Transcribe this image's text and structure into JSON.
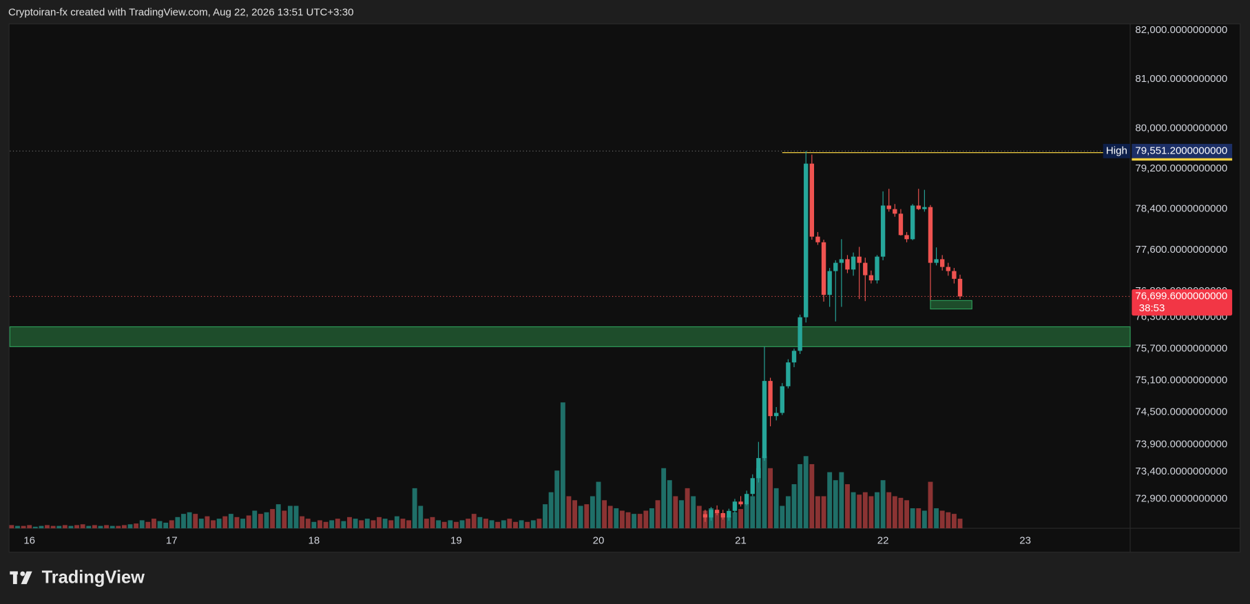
{
  "header": {
    "text": "Cryptoiran-fx created with TradingView.com, Aug 22, 2026 13:51 UTC+3:30"
  },
  "footer": {
    "logo": "TradingView"
  },
  "chart_data": {
    "type": "candlestick",
    "log_scale": true,
    "up_color": "#26a69a",
    "down_color": "#ef5350",
    "ylim": [
      72363,
      82131
    ],
    "yticks": [
      {
        "value": 82000,
        "label": "82,000.0000000000"
      },
      {
        "value": 81000,
        "label": "81,000.0000000000"
      },
      {
        "value": 80000,
        "label": "80,000.0000000000"
      },
      {
        "value": 79200,
        "label": "79,200.0000000000"
      },
      {
        "value": 78400,
        "label": "78,400.0000000000"
      },
      {
        "value": 77600,
        "label": "77,600.0000000000"
      },
      {
        "value": 76800,
        "label": "76,800.0000000000"
      },
      {
        "value": 76300,
        "label": "76,300.0000000000"
      },
      {
        "value": 75700,
        "label": "75,700.0000000000"
      },
      {
        "value": 75100,
        "label": "75,100.0000000000"
      },
      {
        "value": 74500,
        "label": "74,500.0000000000"
      },
      {
        "value": 73900,
        "label": "73,900.0000000000"
      },
      {
        "value": 73400,
        "label": "73,400.0000000000"
      },
      {
        "value": 72900,
        "label": "72,900.0000000000"
      }
    ],
    "xlim": [
      -0.3,
      188.7
    ],
    "xticks": [
      {
        "value": 3,
        "label": "16"
      },
      {
        "value": 27,
        "label": "17"
      },
      {
        "value": 51,
        "label": "18"
      },
      {
        "value": 75,
        "label": "19"
      },
      {
        "value": 99,
        "label": "20"
      },
      {
        "value": 123,
        "label": "21"
      },
      {
        "value": 147,
        "label": "22"
      },
      {
        "value": 171,
        "label": "23"
      }
    ],
    "open": [
      null,
      null,
      null,
      null,
      null,
      null,
      null,
      null,
      null,
      null,
      null,
      null,
      null,
      null,
      null,
      null,
      null,
      null,
      null,
      null,
      null,
      null,
      null,
      null,
      null,
      null,
      null,
      null,
      null,
      null,
      null,
      null,
      null,
      null,
      null,
      null,
      null,
      null,
      null,
      null,
      null,
      null,
      null,
      null,
      null,
      null,
      null,
      null,
      null,
      null,
      null,
      null,
      null,
      null,
      null,
      null,
      null,
      null,
      null,
      null,
      null,
      null,
      null,
      null,
      null,
      null,
      null,
      null,
      null,
      null,
      null,
      null,
      null,
      null,
      null,
      null,
      null,
      null,
      null,
      null,
      null,
      null,
      null,
      null,
      null,
      null,
      null,
      null,
      null,
      null,
      null,
      null,
      null,
      null,
      null,
      null,
      null,
      null,
      null,
      null,
      null,
      null,
      null,
      null,
      null,
      null,
      null,
      null,
      null,
      null,
      null,
      null,
      null,
      null,
      null,
      null,
      null,
      72620,
      72560,
      72700,
      72640,
      72560,
      72680,
      72850,
      72800,
      72990,
      73280,
      73650,
      75090,
      74430,
      74490,
      74990,
      75440,
      75660,
      76300,
      79300,
      77860,
      77750,
      76730,
      77190,
      77350,
      77420,
      77220,
      77470,
      77350,
      77110,
      77010,
      77470,
      78470,
      78400,
      78310,
      77890,
      77810,
      78470,
      78400,
      78440,
      77350,
      77420,
      77270,
      77190,
      77040
    ],
    "high": [
      null,
      null,
      null,
      null,
      null,
      null,
      null,
      null,
      null,
      null,
      null,
      null,
      null,
      null,
      null,
      null,
      null,
      null,
      null,
      null,
      null,
      null,
      null,
      null,
      null,
      null,
      null,
      null,
      null,
      null,
      null,
      null,
      null,
      null,
      null,
      null,
      null,
      null,
      null,
      null,
      null,
      null,
      null,
      null,
      null,
      null,
      null,
      null,
      null,
      null,
      null,
      null,
      null,
      null,
      null,
      null,
      null,
      null,
      null,
      null,
      null,
      null,
      null,
      null,
      null,
      null,
      null,
      null,
      null,
      null,
      null,
      null,
      null,
      null,
      null,
      null,
      null,
      null,
      null,
      null,
      null,
      null,
      null,
      null,
      null,
      null,
      null,
      null,
      null,
      null,
      null,
      null,
      null,
      null,
      null,
      null,
      null,
      null,
      null,
      null,
      null,
      null,
      null,
      null,
      null,
      null,
      null,
      null,
      null,
      null,
      null,
      null,
      null,
      null,
      null,
      null,
      null,
      72700,
      72750,
      72780,
      72700,
      72720,
      72900,
      72950,
      73050,
      73350,
      73950,
      75740,
      75150,
      74600,
      75050,
      75500,
      75700,
      76350,
      79551.2,
      79480,
      77950,
      77800,
      77250,
      77400,
      77810,
      77500,
      77550,
      77660,
      77450,
      77200,
      77500,
      78750,
      78800,
      78500,
      78400,
      77950,
      78500,
      78800,
      78780,
      78480,
      77650,
      77500,
      77350,
      77250,
      77120
    ],
    "low": [
      null,
      null,
      null,
      null,
      null,
      null,
      null,
      null,
      null,
      null,
      null,
      null,
      null,
      null,
      null,
      null,
      null,
      null,
      null,
      null,
      null,
      null,
      null,
      null,
      null,
      null,
      null,
      null,
      null,
      null,
      null,
      null,
      null,
      null,
      null,
      null,
      null,
      null,
      null,
      null,
      null,
      null,
      null,
      null,
      null,
      null,
      null,
      null,
      null,
      null,
      null,
      null,
      null,
      null,
      null,
      null,
      null,
      null,
      null,
      null,
      null,
      null,
      null,
      null,
      null,
      null,
      null,
      null,
      null,
      null,
      null,
      null,
      null,
      null,
      null,
      null,
      null,
      null,
      null,
      null,
      null,
      null,
      null,
      null,
      null,
      null,
      null,
      null,
      null,
      null,
      null,
      null,
      null,
      null,
      null,
      null,
      null,
      null,
      null,
      null,
      null,
      null,
      null,
      null,
      null,
      null,
      null,
      null,
      null,
      null,
      null,
      null,
      null,
      null,
      null,
      null,
      null,
      72480,
      72500,
      72600,
      72520,
      72500,
      72640,
      72760,
      72780,
      72950,
      73200,
      73600,
      74240,
      74350,
      74450,
      74950,
      75350,
      75600,
      76200,
      77800,
      77700,
      76600,
      76500,
      76220,
      76500,
      77150,
      77100,
      76650,
      76610,
      76950,
      76950,
      77400,
      78350,
      78250,
      77880,
      77750,
      77790,
      78380,
      78350,
      76610,
      77300,
      77200,
      77100,
      76950,
      76650
    ],
    "close": [
      null,
      null,
      null,
      null,
      null,
      null,
      null,
      null,
      null,
      null,
      null,
      null,
      null,
      null,
      null,
      null,
      null,
      null,
      null,
      null,
      null,
      null,
      null,
      null,
      null,
      null,
      null,
      null,
      null,
      null,
      null,
      null,
      null,
      null,
      null,
      null,
      null,
      null,
      null,
      null,
      null,
      null,
      null,
      null,
      null,
      null,
      null,
      null,
      null,
      null,
      null,
      null,
      null,
      null,
      null,
      null,
      null,
      null,
      null,
      null,
      null,
      null,
      null,
      null,
      null,
      null,
      null,
      null,
      null,
      null,
      null,
      null,
      null,
      null,
      null,
      null,
      null,
      null,
      null,
      null,
      null,
      null,
      null,
      null,
      null,
      null,
      null,
      null,
      null,
      null,
      null,
      null,
      null,
      null,
      null,
      null,
      null,
      null,
      null,
      null,
      null,
      null,
      null,
      null,
      null,
      null,
      null,
      null,
      null,
      null,
      null,
      null,
      null,
      null,
      null,
      null,
      null,
      72560,
      72700,
      72640,
      72560,
      72680,
      72850,
      72800,
      72990,
      73280,
      73650,
      75090,
      74430,
      74490,
      74990,
      75440,
      75660,
      76300,
      79300,
      77860,
      77750,
      76730,
      77190,
      77350,
      77420,
      77220,
      77470,
      77350,
      77110,
      77010,
      77470,
      78470,
      78400,
      78310,
      77890,
      77810,
      78470,
      78400,
      78440,
      77350,
      77420,
      77270,
      77190,
      77040,
      76699.6
    ],
    "volume": [
      4,
      3,
      3,
      4,
      2,
      3,
      4,
      3,
      3,
      4,
      3,
      4,
      5,
      3,
      4,
      3,
      4,
      3,
      3,
      4,
      5,
      6,
      10,
      8,
      12,
      9,
      7,
      10,
      14,
      18,
      20,
      18,
      12,
      15,
      10,
      12,
      15,
      18,
      14,
      12,
      16,
      22,
      18,
      20,
      24,
      30,
      22,
      28,
      28,
      15,
      12,
      8,
      10,
      8,
      10,
      12,
      9,
      14,
      12,
      10,
      12,
      10,
      14,
      12,
      10,
      15,
      12,
      10,
      50,
      28,
      12,
      14,
      10,
      8,
      10,
      8,
      10,
      12,
      18,
      14,
      12,
      10,
      8,
      10,
      12,
      8,
      10,
      8,
      10,
      12,
      30,
      45,
      72,
      157,
      40,
      35,
      28,
      30,
      40,
      58,
      35,
      28,
      25,
      22,
      20,
      18,
      18,
      22,
      25,
      35,
      75,
      60,
      40,
      35,
      50,
      40,
      28,
      22,
      25,
      20,
      18,
      15,
      20,
      24,
      30,
      40,
      75,
      90,
      75,
      50,
      28,
      40,
      55,
      80,
      90,
      80,
      40,
      40,
      70,
      60,
      70,
      55,
      45,
      42,
      45,
      40,
      45,
      60,
      45,
      40,
      38,
      35,
      25,
      25,
      22,
      58,
      25,
      22,
      20,
      18,
      12
    ],
    "volume_colors": [
      "#8b3333",
      "#1f6f68",
      "#8b3333",
      "#8b3333",
      "#1f6f68",
      "#1f6f68",
      "#8b3333",
      "#8b3333",
      "#1f6f68",
      "#8b3333",
      "#1f6f68",
      "#8b3333",
      "#8b3333",
      "#1f6f68",
      "#8b3333",
      "#1f6f68",
      "#8b3333",
      "#1f6f68",
      "#8b3333",
      "#8b3333",
      "#1f6f68",
      "#8b3333",
      "#1f6f68",
      "#8b3333",
      "#8b3333",
      "#1f6f68",
      "#1f6f68",
      "#8b3333",
      "#1f6f68",
      "#1f6f68",
      "#1f6f68",
      "#8b3333",
      "#1f6f68",
      "#8b3333",
      "#8b3333",
      "#1f6f68",
      "#8b3333",
      "#1f6f68",
      "#8b3333",
      "#1f6f68",
      "#8b3333",
      "#1f6f68",
      "#8b3333",
      "#1f6f68",
      "#8b3333",
      "#1f6f68",
      "#8b3333",
      "#1f6f68",
      "#1f6f68",
      "#8b3333",
      "#8b3333",
      "#1f6f68",
      "#8b3333",
      "#8b3333",
      "#1f6f68",
      "#8b3333",
      "#1f6f68",
      "#8b3333",
      "#1f6f68",
      "#8b3333",
      "#1f6f68",
      "#8b3333",
      "#8b3333",
      "#1f6f68",
      "#8b3333",
      "#1f6f68",
      "#8b3333",
      "#8b3333",
      "#1f6f68",
      "#1f6f68",
      "#8b3333",
      "#8b3333",
      "#1f6f68",
      "#8b3333",
      "#1f6f68",
      "#8b3333",
      "#1f6f68",
      "#8b3333",
      "#8b3333",
      "#1f6f68",
      "#8b3333",
      "#1f6f68",
      "#8b3333",
      "#1f6f68",
      "#8b3333",
      "#8b3333",
      "#1f6f68",
      "#8b3333",
      "#1f6f68",
      "#8b3333",
      "#1f6f68",
      "#1f6f68",
      "#1f6f68",
      "#1f6f68",
      "#8b3333",
      "#8b3333",
      "#1f6f68",
      "#8b3333",
      "#1f6f68",
      "#1f6f68",
      "#8b3333",
      "#8b3333",
      "#1f6f68",
      "#8b3333",
      "#8b3333",
      "#1f6f68",
      "#8b3333",
      "#8b3333",
      "#1f6f68",
      "#8b3333",
      "#1f6f68",
      "#1f6f68",
      "#8b3333",
      "#1f6f68",
      "#8b3333",
      "#1f6f68",
      "#8b3333",
      "#8b3333",
      "#1f6f68",
      "#8b3333",
      "#8b3333",
      "#1f6f68",
      "#1f6f68",
      "#8b3333",
      "#1f6f68",
      "#1f6f68",
      "#1f6f68",
      "#1f6f68",
      "#8b3333",
      "#1f6f68",
      "#1f6f68",
      "#1f6f68",
      "#1f6f68",
      "#1f6f68",
      "#1f6f68",
      "#8b3333",
      "#8b3333",
      "#8b3333",
      "#1f6f68",
      "#1f6f68",
      "#1f6f68",
      "#8b3333",
      "#1f6f68",
      "#8b3333",
      "#8b3333",
      "#8b3333",
      "#1f6f68",
      "#1f6f68",
      "#8b3333",
      "#8b3333",
      "#8b3333",
      "#8b3333",
      "#1f6f68",
      "#8b3333",
      "#1f6f68",
      "#8b3333",
      "#1f6f68",
      "#8b3333",
      "#8b3333",
      "#8b3333",
      "#8b3333"
    ],
    "zone": [
      75739,
      76118
    ],
    "box": {
      "range": [
        76459,
        76621
      ],
      "from": 155,
      "to": 162
    },
    "high_marker": {
      "label": "High",
      "value": 79551.2,
      "value_label": "79,551.2000000000"
    },
    "last_price": {
      "value": 76699.6,
      "value_label": "76,699.6000000000",
      "countdown": "38:53"
    }
  }
}
